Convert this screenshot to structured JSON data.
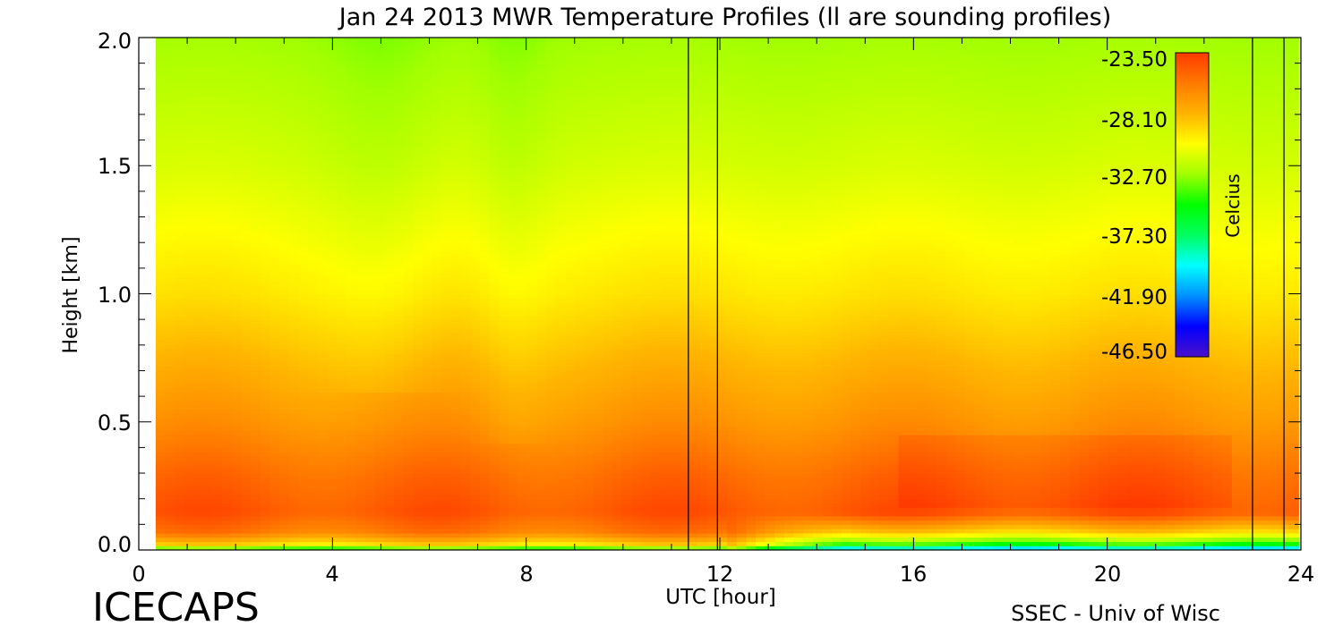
{
  "chart_data": {
    "type": "heatmap",
    "title": "Jan 24 2013 MWR Temperature Profiles (ll are sounding profiles)",
    "xlabel": "UTC [hour]",
    "ylabel": "Height [km]",
    "xlim": [
      0,
      24
    ],
    "ylim": [
      0,
      2.0
    ],
    "x_ticks": [
      "0",
      "4",
      "8",
      "12",
      "16",
      "20",
      "24"
    ],
    "y_ticks": [
      "0.0",
      "0.5",
      "1.0",
      "1.5",
      "2.0"
    ],
    "data_x_range": [
      0.35,
      23.95
    ],
    "sounding_profiles_utc": [
      11.35,
      11.95,
      23.0,
      23.65
    ],
    "colorbar": {
      "label": "Celcius",
      "ticks": [
        "-23.50",
        "-28.10",
        "-32.70",
        "-37.30",
        "-41.90",
        "-46.50"
      ],
      "range": [
        -46.5,
        -23.5
      ],
      "colors": [
        "#4a10c8",
        "#0000ff",
        "#0090ff",
        "#00ffff",
        "#00ff60",
        "#00ff00",
        "#a0ff00",
        "#ffff00",
        "#ffb400",
        "#ff7a00",
        "#ff3a00"
      ]
    },
    "temperature_profile_celsius": [
      {
        "height_km": 0.0,
        "temp": -36.0
      },
      {
        "height_km": 0.02,
        "temp": -29.5
      },
      {
        "height_km": 0.07,
        "temp": -25.8
      },
      {
        "height_km": 0.15,
        "temp": -24.5
      },
      {
        "height_km": 0.3,
        "temp": -25.3
      },
      {
        "height_km": 0.5,
        "temp": -26.8
      },
      {
        "height_km": 0.75,
        "temp": -28.2
      },
      {
        "height_km": 1.0,
        "temp": -29.6
      },
      {
        "height_km": 1.5,
        "temp": -31.4
      },
      {
        "height_km": 2.0,
        "temp": -32.6
      }
    ],
    "annotations": [
      "ICECAPS",
      "SSEC - Univ of Wisc"
    ]
  }
}
